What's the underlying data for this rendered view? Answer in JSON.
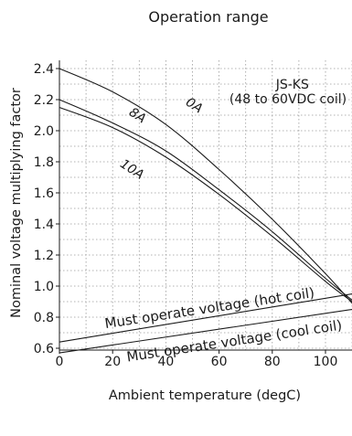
{
  "chart_data": {
    "type": "line",
    "title": "Operation range",
    "xlabel": "Ambient temperature (degC)",
    "ylabel": "Nominal voltage multiplying factor",
    "xlim": [
      0,
      110
    ],
    "ylim": [
      0.55,
      2.5
    ],
    "grid": true,
    "x_ticks": [
      0,
      20,
      40,
      60,
      80,
      100
    ],
    "y_ticks": [
      0.6,
      0.8,
      1.0,
      1.2,
      1.4,
      1.6,
      1.8,
      2.0,
      2.2,
      2.4
    ],
    "x_tick_labels": [
      "0",
      "20",
      "40",
      "60",
      "80",
      "100"
    ],
    "y_tick_labels": [
      "0.6",
      "0.8",
      "1.0",
      "1.2",
      "1.4",
      "1.6",
      "1.8",
      "2.0",
      "2.2",
      "2.4"
    ],
    "annotation_lines": [
      "JS-KS",
      "(48 to 60VDC coil)"
    ],
    "series": [
      {
        "name": "0A",
        "x": [
          0,
          20,
          40,
          60,
          80,
          100,
          110
        ],
        "y": [
          2.4,
          2.25,
          2.04,
          1.75,
          1.43,
          1.08,
          0.89
        ]
      },
      {
        "name": "8A",
        "x": [
          0,
          20,
          40,
          60,
          80,
          100,
          110
        ],
        "y": [
          2.2,
          2.05,
          1.87,
          1.62,
          1.35,
          1.05,
          0.91
        ]
      },
      {
        "name": "10A",
        "x": [
          0,
          20,
          40,
          60,
          80,
          100,
          110
        ],
        "y": [
          2.15,
          2.02,
          1.83,
          1.59,
          1.32,
          1.03,
          0.9
        ]
      },
      {
        "name": "Must operate voltage (hot coil)",
        "x": [
          0,
          110
        ],
        "y": [
          0.64,
          0.95
        ]
      },
      {
        "name": "Must operate voltage (cool coil)",
        "x": [
          0,
          110
        ],
        "y": [
          0.57,
          0.85
        ]
      }
    ]
  }
}
